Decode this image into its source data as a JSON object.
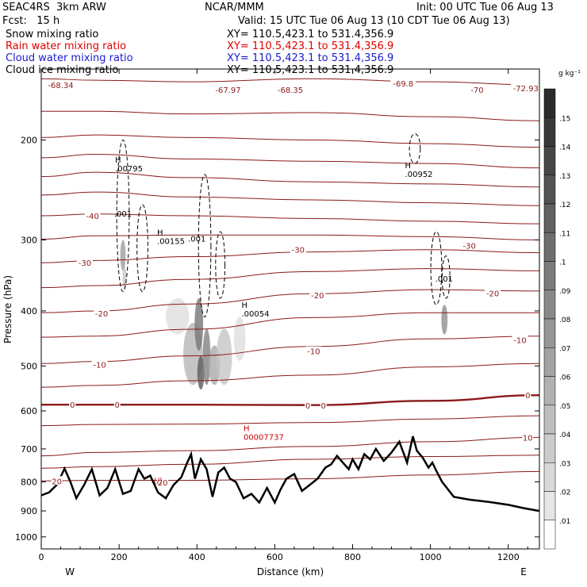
{
  "header": {
    "model": "SEAC4RS  3km ARW",
    "org": "NCAR/MMM",
    "init": "Init: 00 UTC Tue 06 Aug 13",
    "fcst": "Fcst:   15 h",
    "valid": "Valid: 15 UTC Tue 06 Aug 13 (10 CDT Tue 06 Aug 13)",
    "fields": [
      {
        "label": "Snow mixing ratio",
        "xy": "XY= 110.5,423.1 to 531.4,356.9",
        "color": "#000000"
      },
      {
        "label": "Rain water mixing ratio",
        "xy": "XY= 110.5,423.1 to 531.4,356.9",
        "color": "#e00000"
      },
      {
        "label": "Cloud water mixing ratio",
        "xy": "XY= 110.5,423.1 to 531.4,356.9",
        "color": "#1a1acc"
      },
      {
        "label": "Cloud ice mixing ratio",
        "xy": "XY= 110.5,423.1 to 531.4,356.9",
        "color": "#000000"
      }
    ]
  },
  "chart_data": {
    "type": "contour",
    "xlabel": "Distance (km)",
    "ylabel": "Pressure (hPa)",
    "xlim": [
      0,
      1280
    ],
    "ylim": [
      1050,
      150
    ],
    "y_scale": "log-pressure",
    "x_ticks": [
      0,
      200,
      400,
      600,
      800,
      1000,
      1200
    ],
    "y_ticks": [
      200,
      300,
      400,
      500,
      600,
      700,
      800,
      900,
      1000
    ],
    "left_end_label": "W",
    "right_end_label": "E",
    "colorbar": {
      "unit": "g kg⁻¹",
      "ticks": [
        0.01,
        0.02,
        0.03,
        0.04,
        0.05,
        0.06,
        0.07,
        0.08,
        0.09,
        0.1,
        0.11,
        0.12,
        0.13,
        0.14,
        0.15
      ],
      "tick_labels": [
        ".01",
        ".02",
        ".03",
        ".04",
        ".05",
        ".06",
        ".07",
        ".08",
        ".09",
        ".1",
        ".11",
        ".12",
        ".13",
        ".14",
        ".15"
      ]
    },
    "temperature_contour_labels": [
      {
        "x": 50,
        "p": 160,
        "text": "-68.34"
      },
      {
        "x": 480,
        "p": 163,
        "text": "-67.97"
      },
      {
        "x": 640,
        "p": 163,
        "text": "-68.35"
      },
      {
        "x": 930,
        "p": 159,
        "text": "-69.8"
      },
      {
        "x": 1120,
        "p": 163,
        "text": "-70"
      },
      {
        "x": 1245,
        "p": 162,
        "text": "-72.93"
      },
      {
        "x": 132,
        "p": 272,
        "text": "-40"
      },
      {
        "x": 112,
        "p": 329,
        "text": "-30"
      },
      {
        "x": 660,
        "p": 312,
        "text": "-30"
      },
      {
        "x": 1100,
        "p": 307,
        "text": "-30"
      },
      {
        "x": 155,
        "p": 404,
        "text": "-20"
      },
      {
        "x": 710,
        "p": 375,
        "text": "-20"
      },
      {
        "x": 1160,
        "p": 372,
        "text": "-20"
      },
      {
        "x": 150,
        "p": 497,
        "text": "-10"
      },
      {
        "x": 700,
        "p": 471,
        "text": "-10"
      },
      {
        "x": 1230,
        "p": 450,
        "text": "-10"
      },
      {
        "x": 80,
        "p": 585,
        "text": "0"
      },
      {
        "x": 195,
        "p": 585,
        "text": "0"
      },
      {
        "x": 685,
        "p": 587,
        "text": "0"
      },
      {
        "x": 725,
        "p": 587,
        "text": "0"
      },
      {
        "x": 1250,
        "p": 563,
        "text": "0"
      },
      {
        "x": 1250,
        "p": 668,
        "text": "10"
      },
      {
        "x": 40,
        "p": 797,
        "text": "20"
      },
      {
        "x": 312,
        "p": 802,
        "text": "20"
      }
    ],
    "extrema_labels": [
      {
        "x": 210,
        "p": 225,
        "mark": "H",
        "text": ".00795",
        "color": "#000000"
      },
      {
        "x": 318,
        "p": 302,
        "mark": "H",
        "text": ".00155",
        "color": "#000000"
      },
      {
        "x": 535,
        "p": 405,
        "mark": "H",
        "text": ".00054",
        "color": "#000000"
      },
      {
        "x": 955,
        "p": 230,
        "mark": "H",
        "text": ".00952",
        "color": "#000000"
      },
      {
        "x": 540,
        "p": 668,
        "mark": "H",
        "text": "00007737",
        "color": "#cc0000"
      }
    ],
    "ice_contour_labels": [
      {
        "x": 210,
        "p": 273,
        "text": ".001"
      },
      {
        "x": 400,
        "p": 302,
        "text": ".001"
      },
      {
        "x": 1035,
        "p": 355,
        "text": ".001"
      }
    ],
    "rain_contour_labels": [
      {
        "x": 300,
        "p": 805,
        "text": "(/)"
      }
    ],
    "isotherm_pressures_at_x": [
      0,
      140,
      380,
      700,
      1000,
      1280
    ],
    "isotherms": [
      {
        "label": "-70",
        "p": [
          156,
          157,
          158,
          156,
          158,
          160
        ]
      },
      {
        "label": "-65",
        "p": [
          178,
          178,
          180,
          179,
          182,
          185
        ]
      },
      {
        "label": "-60",
        "p": [
          198,
          196,
          198,
          200,
          203,
          206
        ]
      },
      {
        "label": "-55",
        "p": [
          215,
          212,
          216,
          218,
          220,
          224
        ]
      },
      {
        "label": "-50",
        "p": [
          232,
          228,
          233,
          237,
          239,
          242
        ]
      },
      {
        "label": "-45",
        "p": [
          250,
          247,
          252,
          255,
          258,
          261
        ]
      },
      {
        "label": "-40",
        "p": [
          272,
          270,
          272,
          275,
          278,
          281
        ]
      },
      {
        "label": "-35",
        "p": [
          299,
          295,
          294,
          294,
          296,
          300
        ]
      },
      {
        "label": "-30",
        "p": [
          329,
          326,
          321,
          315,
          312,
          316
        ]
      },
      {
        "label": "-25",
        "p": [
          364,
          361,
          352,
          341,
          337,
          340
        ]
      },
      {
        "label": "-20",
        "p": [
          403,
          400,
          389,
          373,
          367,
          369
        ]
      },
      {
        "label": "-15",
        "p": [
          445,
          443,
          431,
          411,
          403,
          403
        ]
      },
      {
        "label": "-10",
        "p": [
          495,
          491,
          480,
          462,
          448,
          443
        ]
      },
      {
        "label": "-5",
        "p": [
          545,
          541,
          531,
          519,
          502,
          495
        ]
      },
      {
        "label": "0",
        "p": [
          585,
          585,
          585,
          586,
          576,
          563
        ]
      },
      {
        "label": "5",
        "p": [
          637,
          634,
          633,
          629,
          620,
          612
        ]
      },
      {
        "label": "10",
        "p": [
          720,
          710,
          705,
          693,
          680,
          668
        ]
      },
      {
        "label": "15",
        "p": [
          757,
          752,
          745,
          730,
          722,
          718
        ]
      },
      {
        "label": "20",
        "p": [
          797,
          795,
          795,
          790,
          778,
          767
        ]
      }
    ],
    "terrain": {
      "x": [
        0,
        20,
        40,
        60,
        75,
        90,
        110,
        130,
        150,
        170,
        190,
        210,
        230,
        250,
        265,
        280,
        300,
        320,
        340,
        360,
        375,
        385,
        395,
        410,
        425,
        440,
        455,
        470,
        485,
        500,
        520,
        540,
        560,
        580,
        600,
        615,
        630,
        650,
        670,
        690,
        710,
        730,
        745,
        760,
        775,
        790,
        800,
        815,
        830,
        845,
        860,
        880,
        900,
        920,
        940,
        955,
        965,
        980,
        995,
        1005,
        1015,
        1030,
        1060,
        1100,
        1150,
        1200,
        1240,
        1280
      ],
      "p": [
        845,
        835,
        810,
        758,
        800,
        855,
        810,
        760,
        845,
        820,
        760,
        840,
        830,
        760,
        790,
        780,
        835,
        855,
        810,
        785,
        740,
        715,
        790,
        730,
        760,
        850,
        770,
        755,
        790,
        800,
        855,
        840,
        870,
        820,
        870,
        825,
        790,
        775,
        830,
        810,
        790,
        755,
        745,
        720,
        740,
        760,
        730,
        760,
        715,
        730,
        700,
        735,
        710,
        680,
        740,
        665,
        705,
        725,
        755,
        740,
        765,
        800,
        850,
        860,
        868,
        878,
        890,
        900
      ]
    },
    "grey_shading_cells": [
      {
        "x": 210,
        "p": 300,
        "w": 14,
        "dp": 40,
        "v": 0.07
      },
      {
        "x": 214,
        "p": 335,
        "w": 10,
        "dp": 30,
        "v": 0.04
      },
      {
        "x": 350,
        "p": 380,
        "w": 60,
        "dp": 60,
        "v": 0.02
      },
      {
        "x": 390,
        "p": 420,
        "w": 50,
        "dp": 120,
        "v": 0.05
      },
      {
        "x": 405,
        "p": 380,
        "w": 22,
        "dp": 90,
        "v": 0.1
      },
      {
        "x": 410,
        "p": 480,
        "w": 18,
        "dp": 70,
        "v": 0.12
      },
      {
        "x": 425,
        "p": 430,
        "w": 20,
        "dp": 110,
        "v": 0.09
      },
      {
        "x": 445,
        "p": 460,
        "w": 30,
        "dp": 80,
        "v": 0.06
      },
      {
        "x": 470,
        "p": 430,
        "w": 40,
        "dp": 110,
        "v": 0.04
      },
      {
        "x": 510,
        "p": 410,
        "w": 30,
        "dp": 80,
        "v": 0.02
      },
      {
        "x": 1036,
        "p": 390,
        "w": 16,
        "dp": 50,
        "v": 0.08
      }
    ]
  }
}
